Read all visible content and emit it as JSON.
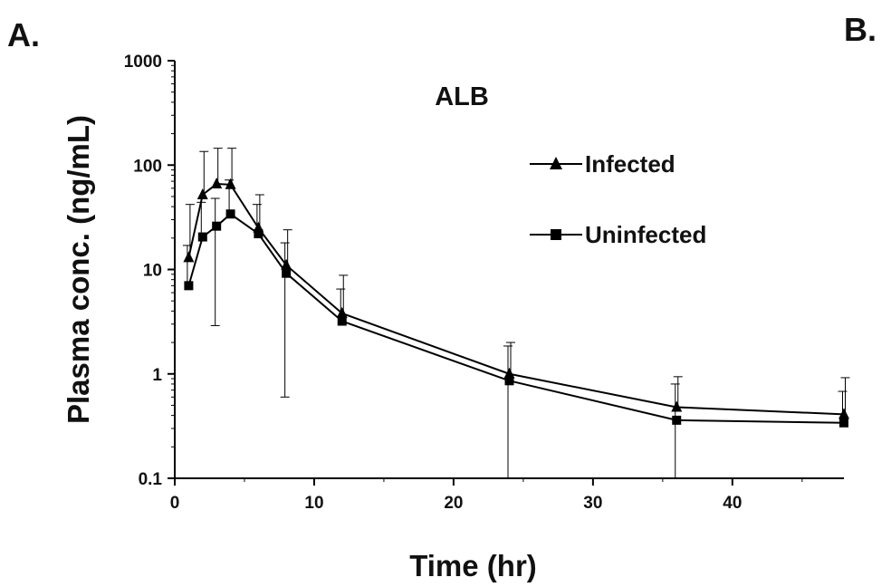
{
  "panels": {
    "left_label": "A.",
    "right_label": "B."
  },
  "chart_data": {
    "type": "line",
    "title": "ALB",
    "xlabel": "Time (hr)",
    "ylabel": "Plasma conc. (ng/mL)",
    "xlim": [
      0,
      48
    ],
    "ylim": [
      0.1,
      1000
    ],
    "yscale": "log",
    "x_ticks": [
      0,
      10,
      20,
      30,
      40
    ],
    "y_ticks": [
      0.1,
      1,
      10,
      100,
      1000
    ],
    "y_tick_labels": [
      "0.1",
      "1",
      "10",
      "100",
      "1000"
    ],
    "grid": false,
    "legend_position": "top-right",
    "x": [
      1,
      2,
      3,
      4,
      6,
      8,
      12,
      24,
      36,
      48
    ],
    "series": [
      {
        "name": "Infected",
        "marker": "triangle",
        "color": "#000000",
        "values": [
          13,
          52,
          66,
          65,
          25,
          11,
          3.8,
          1.0,
          0.48,
          0.41
        ],
        "error_upper": [
          42,
          135,
          145,
          145,
          52,
          24,
          8.8,
          2.0,
          0.94,
          0.92
        ]
      },
      {
        "name": "Uninfected",
        "marker": "square",
        "color": "#000000",
        "values": [
          7.0,
          20.5,
          26,
          34,
          22,
          9.2,
          3.2,
          0.86,
          0.36,
          0.34
        ],
        "error_upper": [
          17,
          44,
          48,
          72,
          42,
          18,
          6.5,
          1.85,
          0.8,
          0.68
        ],
        "error_lower": [
          null,
          null,
          2.9,
          null,
          null,
          0.6,
          null,
          0.1,
          0.1,
          null
        ]
      }
    ]
  }
}
